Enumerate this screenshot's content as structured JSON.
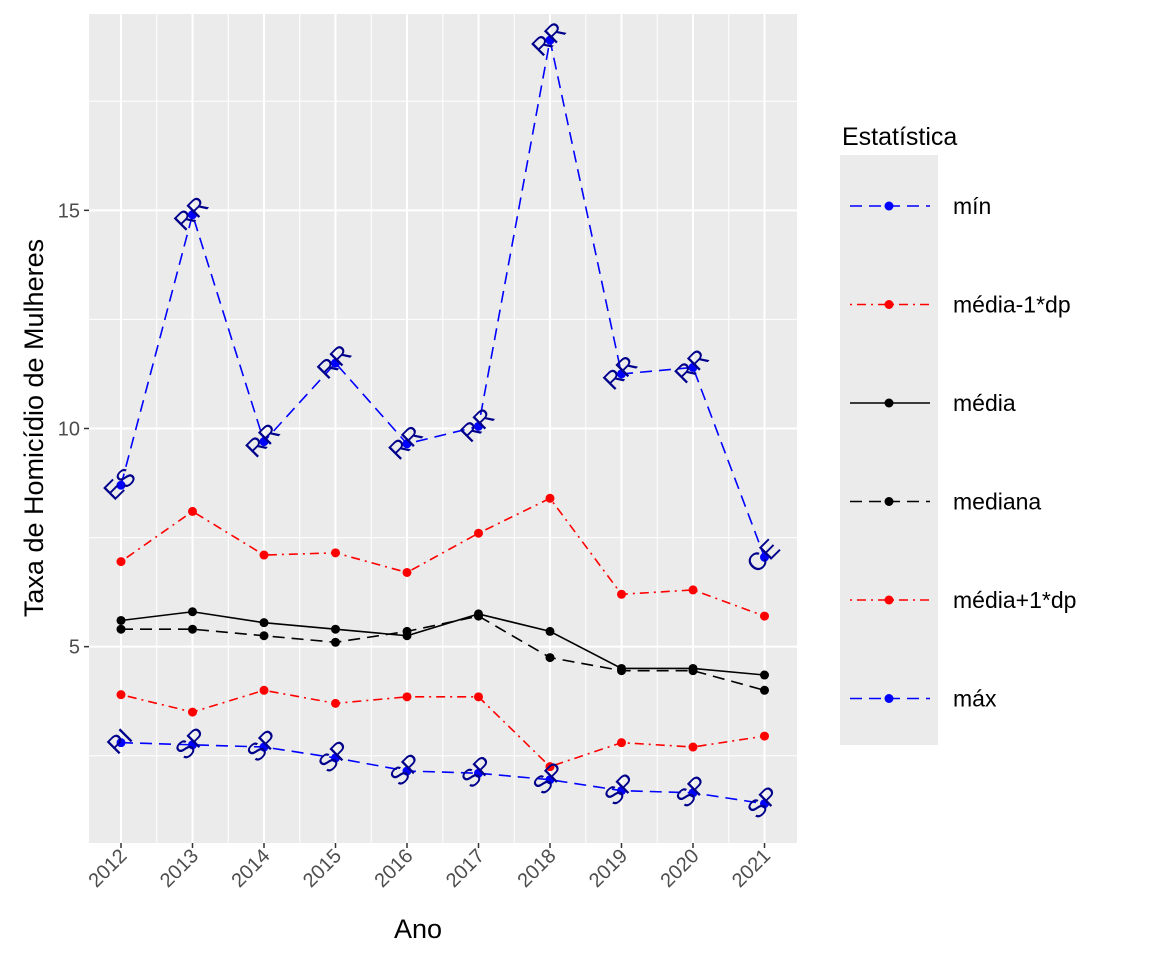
{
  "chart_data": {
    "type": "line",
    "title": "",
    "xlabel": "Ano",
    "ylabel": "Taxa de Homicídio de Mulheres",
    "ylim": [
      0.5,
      19.5
    ],
    "yticks": [
      5,
      10,
      15
    ],
    "grid": true,
    "legend_position": "right",
    "legend_title": "Estatística",
    "categories": [
      "2012",
      "2013",
      "2014",
      "2015",
      "2016",
      "2017",
      "2018",
      "2019",
      "2020",
      "2021"
    ],
    "series": [
      {
        "name": "mín",
        "color": "#0000ff",
        "dash": "dashed",
        "values": [
          8.7,
          14.9,
          9.7,
          11.5,
          9.65,
          10.05,
          18.9,
          11.25,
          11.4,
          7.05
        ],
        "labels": [
          "ES",
          "RR",
          "RR",
          "RR",
          "RR",
          "RR",
          "RR",
          "RR",
          "RR",
          "CE"
        ]
      },
      {
        "name": "média-1*dp",
        "color": "#ff0000",
        "dash": "dotdash",
        "values": [
          6.95,
          8.1,
          7.1,
          7.15,
          6.7,
          7.6,
          8.4,
          6.2,
          6.3,
          5.7
        ]
      },
      {
        "name": "média",
        "color": "#000000",
        "dash": "solid",
        "values": [
          5.6,
          5.8,
          5.55,
          5.4,
          5.25,
          5.75,
          5.35,
          4.5,
          4.5,
          4.35
        ]
      },
      {
        "name": "mediana",
        "color": "#000000",
        "dash": "dashed",
        "values": [
          5.4,
          5.4,
          5.25,
          5.1,
          5.35,
          5.7,
          4.75,
          4.45,
          4.45,
          4.0
        ]
      },
      {
        "name": "média+1*dp",
        "color": "#ff0000",
        "dash": "dotdash",
        "values": [
          3.9,
          3.5,
          4.0,
          3.7,
          3.85,
          3.85,
          2.25,
          2.8,
          2.7,
          2.95
        ]
      },
      {
        "name": "máx",
        "color": "#0000ff",
        "dash": "dashed",
        "values": [
          2.8,
          2.75,
          2.7,
          2.45,
          2.15,
          2.1,
          1.95,
          1.7,
          1.65,
          1.4
        ],
        "labels": [
          "PI",
          "SP",
          "SP",
          "SP",
          "SP",
          "SP",
          "SP",
          "SP",
          "SP",
          "SP"
        ]
      }
    ]
  }
}
